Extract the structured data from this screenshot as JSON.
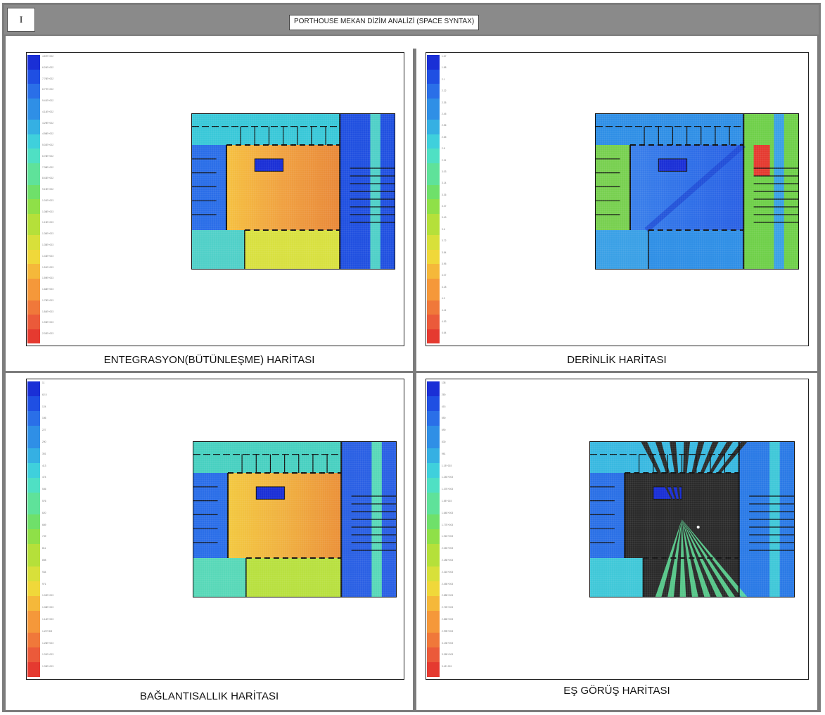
{
  "header": {
    "number": "I",
    "title": "PORTHOUSE MEKAN DİZİM ANALİZİ (SPACE SYNTAX)"
  },
  "panels": {
    "integration": {
      "caption": "ENTEGRASYON(BÜTÜNLEŞME) HARİTASI",
      "legend": [
        "4.87E+002",
        "6.24E+002",
        "7.76E+002",
        "8.77E+002",
        "9.41E+002",
        "4.14E+002",
        "4.29E+002",
        "4.98E+002",
        "5.02E+002",
        "6.78E+002",
        "7.38E+002",
        "8.43E+002",
        "9.19E+002",
        "1.01E+003",
        "1.08E+003",
        "1.19E+003",
        "1.30E+003",
        "1.35E+003",
        "1.43E+003",
        "1.51E+003",
        "1.59E+003",
        "1.68E+003",
        "1.75E+003",
        "1.84E+003",
        "1.93E+003",
        "2.02E+003"
      ]
    },
    "depth": {
      "caption": "DERİNLİK HARİTASI",
      "legend": [
        "1.67",
        "1.88",
        "2.1",
        "2.22",
        "2.35",
        "2.45",
        "2.56",
        "2.65",
        "2.8",
        "2.91",
        "3.03",
        "3.14",
        "3.26",
        "3.37",
        "3.49",
        "3.6",
        "3.72",
        "3.84",
        "3.95",
        "4.07",
        "4.18",
        "4.3",
        "4.41",
        "4.53",
        "4.64"
      ]
    },
    "connectivity": {
      "caption": "BAĞLANTISALLIK HARİTASI",
      "legend": [
        "11",
        "62.5",
        "124",
        "186",
        "227",
        "290",
        "351",
        "413",
        "474",
        "536",
        "576",
        "620",
        "689",
        "749",
        "811",
        "898",
        "934",
        "971",
        "1.02E+003",
        "1.08E+003",
        "1.14E+003",
        "1.2E+003",
        "1.26E+003",
        "1.31E+003",
        "1.33E+003"
      ]
    },
    "isovist": {
      "caption": "EŞ GÖRÜŞ HARİTASI",
      "legend": [
        "138",
        "280",
        "415",
        "550",
        "690",
        "830",
        "961",
        "1.1E+003",
        "1.24E+003",
        "1.37E+003",
        "1.5E+003",
        "1.64E+003",
        "1.77E+003",
        "1.91E+003",
        "2.04E+003",
        "2.18E+003",
        "2.31E+003",
        "2.45E+003",
        "2.58E+003",
        "2.72E+003",
        "2.86E+003",
        "2.99E+003",
        "3.13E+003",
        "3.26E+003",
        "3.4E+003"
      ]
    }
  },
  "colors": {
    "scale": [
      "#1a2fd6",
      "#1f4fe3",
      "#2a6fe8",
      "#2f8fe6",
      "#35b0e3",
      "#3fd0dc",
      "#4fe0c4",
      "#5fe29a",
      "#6fe06a",
      "#8fe048",
      "#b5e03a",
      "#d8e03a",
      "#f0d83a",
      "#f5b83a",
      "#f5983a",
      "#f0783a",
      "#eb5a3a",
      "#e53a30"
    ]
  }
}
